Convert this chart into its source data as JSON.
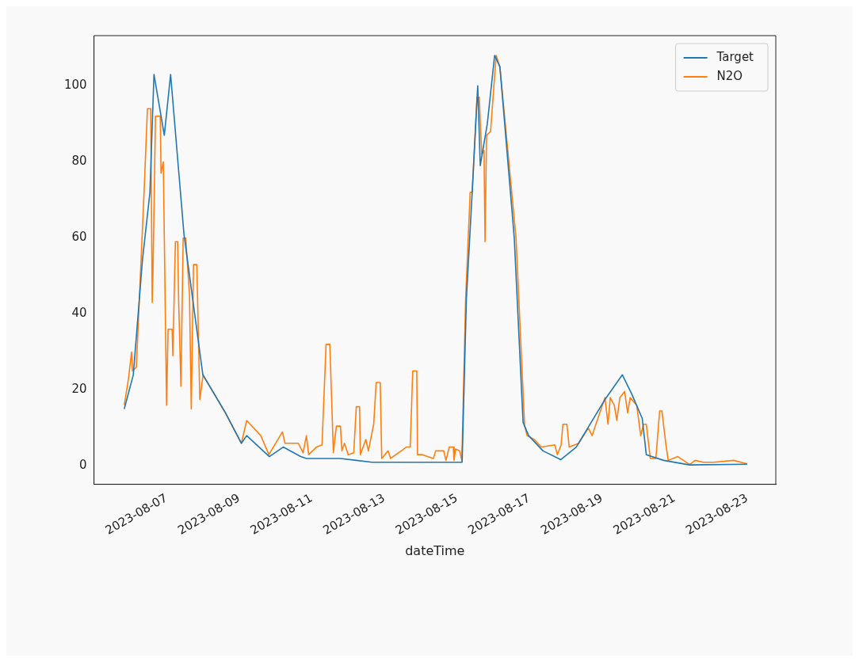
{
  "chart_data": {
    "type": "line",
    "xlabel": "dateTime",
    "xlim": [
      "2023-08-05T00:00",
      "2023-08-23T19:00"
    ],
    "ylim": [
      -4.8,
      113.2
    ],
    "xticks": [
      "2023-08-07",
      "2023-08-09",
      "2023-08-11",
      "2023-08-13",
      "2023-08-15",
      "2023-08-17",
      "2023-08-19",
      "2023-08-21",
      "2023-08-23"
    ],
    "yticks": [
      0,
      20,
      40,
      60,
      80,
      100
    ],
    "grid": false,
    "legend": "top right",
    "marker": "none",
    "line_style": "solid",
    "series": [
      {
        "name": "Target",
        "color": "#1f77b4",
        "x": [
          "2023-08-05T20:00",
          "2023-08-06T02:00",
          "2023-08-06T08:00",
          "2023-08-06T13:00",
          "2023-08-06T15:40",
          "2023-08-06T22:30",
          "2023-08-07T02:40",
          "2023-08-07T11:30",
          "2023-08-08T00:00",
          "2023-08-08T15:00",
          "2023-08-09T01:30",
          "2023-08-09T05:00",
          "2023-08-09T20:00",
          "2023-08-10T05:10",
          "2023-08-10T16:40",
          "2023-08-10T20:30",
          "2023-08-11T19:00",
          "2023-08-12T05:30",
          "2023-08-12T16:00",
          "2023-08-13T18:00",
          "2023-08-15T03:30",
          "2023-08-15T06:20",
          "2023-08-15T10:10",
          "2023-08-15T13:50",
          "2023-08-15T15:30",
          "2023-08-15T20:10",
          "2023-08-16T01:00",
          "2023-08-16T04:30",
          "2023-08-16T14:00",
          "2023-08-16T19:50",
          "2023-08-16T23:30",
          "2023-08-17T09:00",
          "2023-08-17T20:50",
          "2023-08-18T07:00",
          "2023-08-19T02:00",
          "2023-08-19T13:30",
          "2023-08-19T19:40",
          "2023-08-20T02:40",
          "2023-08-20T05:20",
          "2023-08-20T16:50",
          "2023-08-21T10:00",
          "2023-08-23T00:00"
        ],
        "values": [
          15,
          24,
          54,
          72,
          103,
          87,
          103,
          61,
          24,
          14,
          6,
          8,
          2.5,
          5,
          2.5,
          2,
          2,
          1.5,
          1,
          1,
          1,
          44,
          72,
          100,
          79,
          90,
          108,
          105,
          60,
          11.5,
          8,
          4,
          1.7,
          5,
          17.5,
          24,
          19,
          12.5,
          3,
          1.5,
          0.3,
          0.5
        ]
      },
      {
        "name": "N2O",
        "color": "#ff7f0e",
        "x": [
          "2023-08-05T20:00",
          "2023-08-05T22:50",
          "2023-08-06T00:50",
          "2023-08-06T01:30",
          "2023-08-06T04:00",
          "2023-08-06T09:20",
          "2023-08-06T11:20",
          "2023-08-06T13:30",
          "2023-08-06T14:30",
          "2023-08-06T15:00",
          "2023-08-06T16:40",
          "2023-08-06T19:50",
          "2023-08-06T20:20",
          "2023-08-06T21:50",
          "2023-08-07T00:00",
          "2023-08-07T01:00",
          "2023-08-07T03:40",
          "2023-08-07T04:10",
          "2023-08-07T05:50",
          "2023-08-07T07:20",
          "2023-08-07T08:00",
          "2023-08-07T09:30",
          "2023-08-07T11:00",
          "2023-08-07T12:40",
          "2023-08-07T15:10",
          "2023-08-07T16:20",
          "2023-08-07T17:50",
          "2023-08-07T20:00",
          "2023-08-07T22:00",
          "2023-08-08T00:10",
          "2023-08-08T14:50",
          "2023-08-09T01:30",
          "2023-08-09T05:00",
          "2023-08-09T14:20",
          "2023-08-09T19:40",
          "2023-08-10T04:40",
          "2023-08-10T06:20",
          "2023-08-10T15:10",
          "2023-08-10T18:20",
          "2023-08-10T20:30",
          "2023-08-10T22:00",
          "2023-08-11T03:10",
          "2023-08-11T06:50",
          "2023-08-11T09:30",
          "2023-08-11T12:00",
          "2023-08-11T14:20",
          "2023-08-11T16:20",
          "2023-08-11T19:00",
          "2023-08-11T20:00",
          "2023-08-11T21:40",
          "2023-08-12T00:10",
          "2023-08-12T03:50",
          "2023-08-12T05:30",
          "2023-08-12T07:40",
          "2023-08-12T08:10",
          "2023-08-12T11:50",
          "2023-08-12T13:30",
          "2023-08-12T17:00",
          "2023-08-12T18:40",
          "2023-08-12T21:20",
          "2023-08-12T22:20",
          "2023-08-13T02:30",
          "2023-08-13T04:10",
          "2023-08-13T14:40",
          "2023-08-13T17:10",
          "2023-08-13T18:50",
          "2023-08-13T21:30",
          "2023-08-13T22:00",
          "2023-08-14T01:10",
          "2023-08-14T08:30",
          "2023-08-14T10:00",
          "2023-08-14T15:20",
          "2023-08-14T16:50",
          "2023-08-14T19:00",
          "2023-08-14T21:40",
          "2023-08-14T22:10",
          "2023-08-14T23:10",
          "2023-08-15T01:50",
          "2023-08-15T03:20",
          "2023-08-15T05:50",
          "2023-08-15T08:50",
          "2023-08-15T10:10",
          "2023-08-15T13:20",
          "2023-08-15T14:50",
          "2023-08-15T16:30",
          "2023-08-15T18:00",
          "2023-08-15T18:40",
          "2023-08-15T19:40",
          "2023-08-15T22:20",
          "2023-08-16T02:00",
          "2023-08-16T04:30",
          "2023-08-16T15:10",
          "2023-08-16T20:50",
          "2023-08-16T22:30",
          "2023-08-17T03:10",
          "2023-08-17T08:00",
          "2023-08-17T16:50",
          "2023-08-17T18:30",
          "2023-08-17T21:00",
          "2023-08-17T22:10",
          "2023-08-18T00:50",
          "2023-08-18T02:20",
          "2023-08-18T08:40",
          "2023-08-18T15:00",
          "2023-08-18T17:30",
          "2023-08-18T19:10",
          "2023-08-19T02:00",
          "2023-08-19T04:00",
          "2023-08-19T05:30",
          "2023-08-19T08:10",
          "2023-08-19T09:50",
          "2023-08-19T11:50",
          "2023-08-19T15:00",
          "2023-08-19T17:00",
          "2023-08-19T18:40",
          "2023-08-19T23:00",
          "2023-08-20T01:40",
          "2023-08-20T03:30",
          "2023-08-20T05:20",
          "2023-08-20T08:00",
          "2023-08-20T11:40",
          "2023-08-20T14:10",
          "2023-08-20T15:40",
          "2023-08-20T18:20",
          "2023-08-20T19:50",
          "2023-08-21T02:10",
          "2023-08-21T10:00",
          "2023-08-21T13:40",
          "2023-08-21T19:00",
          "2023-08-22T02:00",
          "2023-08-22T15:10",
          "2023-08-23T00:00"
        ],
        "values": [
          16,
          23,
          30,
          25,
          26,
          74,
          94,
          94,
          43,
          51,
          92,
          92,
          77,
          80,
          16,
          36,
          36,
          29,
          59,
          59,
          43,
          21,
          60,
          60,
          45,
          15,
          53,
          53,
          17.5,
          24,
          14,
          6,
          12,
          8,
          3,
          9,
          6,
          6,
          3.5,
          8,
          3,
          5,
          5.6,
          32,
          32,
          3.5,
          10.5,
          10.5,
          4,
          6,
          3,
          3.5,
          15.6,
          15.6,
          3,
          7,
          4,
          11,
          22,
          22,
          2,
          4,
          2,
          5,
          5,
          25,
          25,
          3,
          3,
          2,
          4,
          4,
          1.5,
          5,
          5,
          1.5,
          4.5,
          4,
          1.5,
          44,
          72,
          72,
          97,
          97,
          82,
          83,
          59,
          87,
          88,
          108,
          105,
          60,
          10.6,
          8,
          7,
          5,
          5.6,
          3,
          5.6,
          11,
          11,
          5,
          6,
          10,
          8,
          10,
          18,
          11,
          18,
          16,
          12,
          18,
          19.6,
          14,
          18,
          16,
          8,
          11,
          11,
          2,
          2,
          14.5,
          14.5,
          5.6,
          1.5,
          2.5,
          0.4,
          1.5,
          1,
          1,
          1.5,
          0.6
        ]
      }
    ]
  }
}
